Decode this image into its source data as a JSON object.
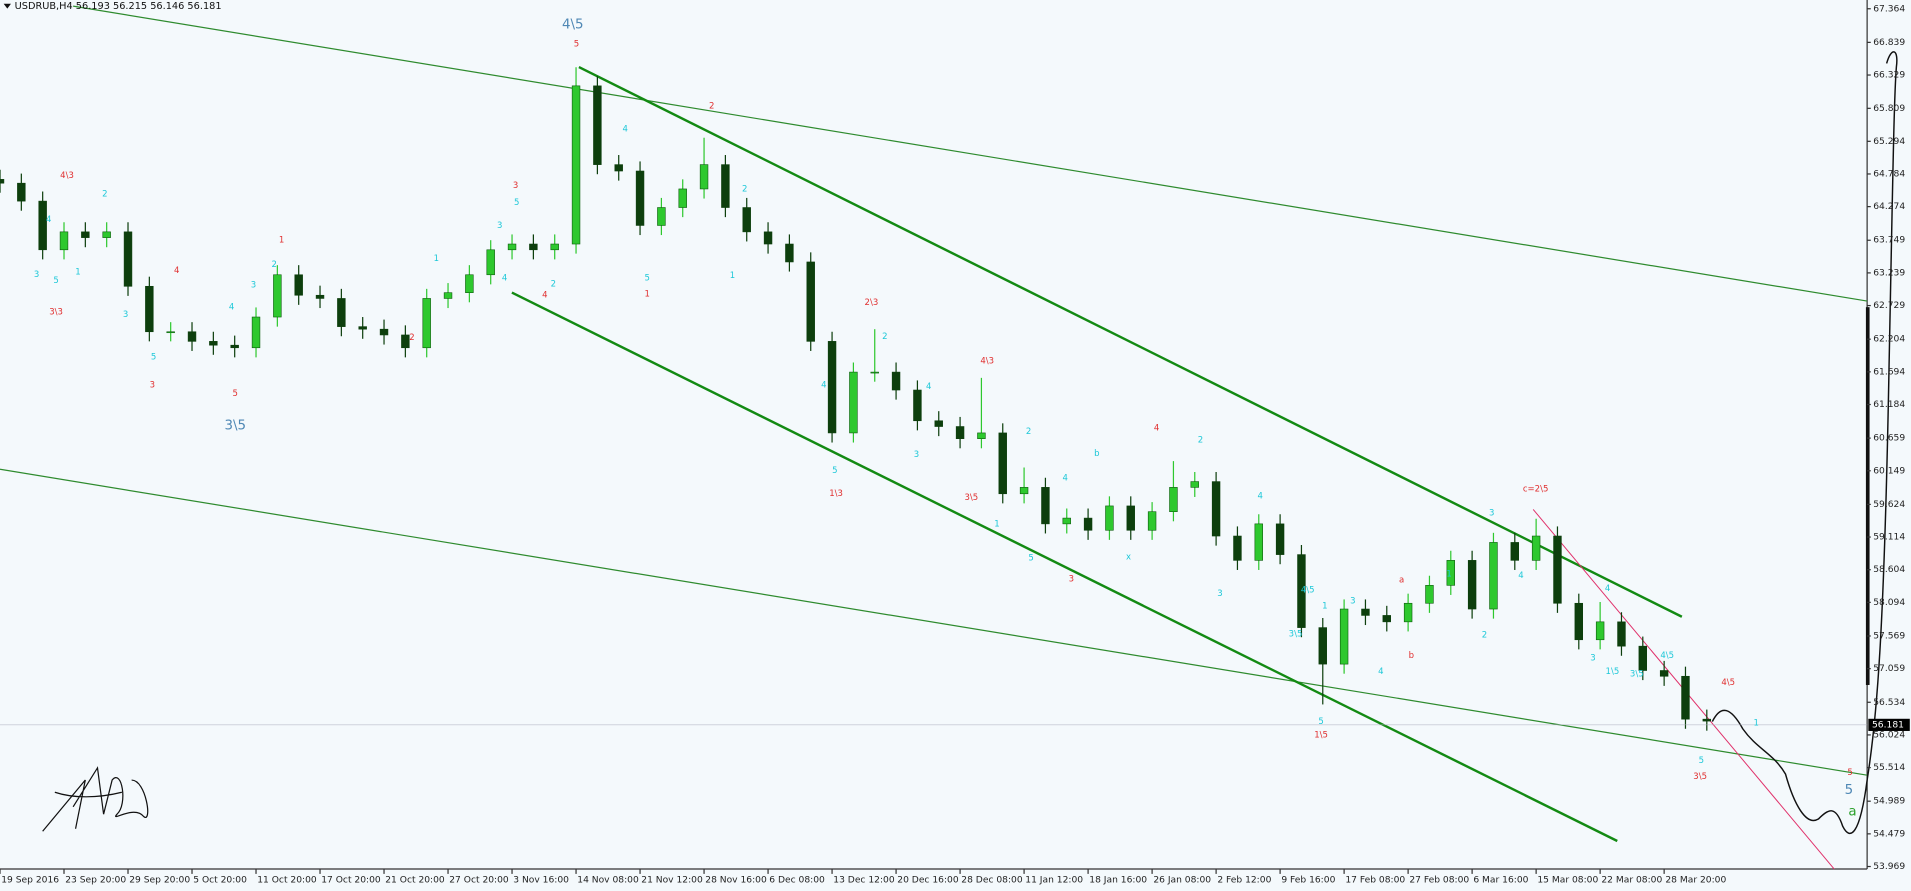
{
  "chart_data": {
    "type": "candlestick",
    "title": "USDRUB,H4  56.193 56.215 56.146 56.181",
    "x": [
      0,
      1,
      2,
      3,
      4,
      5,
      6,
      7,
      8,
      9,
      10,
      11,
      12,
      13,
      14,
      15,
      16,
      17,
      18,
      19,
      20,
      21,
      22,
      23,
      24,
      25,
      26,
      27,
      28,
      29,
      30,
      31,
      32,
      33,
      34,
      35,
      36,
      37,
      38,
      39,
      40,
      41,
      42,
      43,
      44,
      45,
      46,
      47,
      48,
      49,
      50,
      51,
      52,
      53,
      54,
      55,
      56,
      57,
      58,
      59,
      60,
      61,
      62,
      63,
      64,
      65,
      66,
      67,
      68,
      69,
      70,
      71,
      72,
      73,
      74,
      75,
      76,
      77,
      78,
      79,
      80
    ],
    "open": [
      64.7,
      64.64,
      64.36,
      63.6,
      63.88,
      63.79,
      63.88,
      63.03,
      62.32,
      62.32,
      62.17,
      62.11,
      62.07,
      62.55,
      63.21,
      62.89,
      62.84,
      62.4,
      62.36,
      62.27,
      62.07,
      62.84,
      62.93,
      63.21,
      63.6,
      63.69,
      63.6,
      63.69,
      66.16,
      64.93,
      64.83,
      63.98,
      64.26,
      64.55,
      64.93,
      64.26,
      63.88,
      63.69,
      63.41,
      62.17,
      60.74,
      61.69,
      61.69,
      61.41,
      60.93,
      60.84,
      60.65,
      60.74,
      59.79,
      59.89,
      59.32,
      59.41,
      59.22,
      59.6,
      59.22,
      59.51,
      59.89,
      59.98,
      59.13,
      58.75,
      59.32,
      58.84,
      57.7,
      57.13,
      57.99,
      57.89,
      57.79,
      58.08,
      58.36,
      58.75,
      57.99,
      59.03,
      58.75,
      59.13,
      58.08,
      57.51,
      57.79,
      57.41,
      57.03,
      56.94,
      56.27
    ],
    "high": [
      64.85,
      64.79,
      64.51,
      64.03,
      64.03,
      64.03,
      64.03,
      63.18,
      62.47,
      62.47,
      62.32,
      62.26,
      62.7,
      63.36,
      63.36,
      63.04,
      62.99,
      62.55,
      62.51,
      62.42,
      62.99,
      63.08,
      63.36,
      63.75,
      63.84,
      63.84,
      63.84,
      66.45,
      66.31,
      65.08,
      64.98,
      64.41,
      64.7,
      65.35,
      65.08,
      64.41,
      64.03,
      63.84,
      63.56,
      62.32,
      61.84,
      62.36,
      61.84,
      61.56,
      61.08,
      60.99,
      61.6,
      60.89,
      60.2,
      60.04,
      59.56,
      59.56,
      59.75,
      59.75,
      59.66,
      60.3,
      60.13,
      60.13,
      59.28,
      59.47,
      59.47,
      58.99,
      57.85,
      58.14,
      58.14,
      58.04,
      58.23,
      58.51,
      58.9,
      58.9,
      59.18,
      59.18,
      59.4,
      59.28,
      58.23,
      58.1,
      57.94,
      57.56,
      57.18,
      57.09,
      56.42
    ],
    "low": [
      64.49,
      64.21,
      63.45,
      63.45,
      63.64,
      63.64,
      62.88,
      62.17,
      62.17,
      62.02,
      61.96,
      61.92,
      61.92,
      62.4,
      62.74,
      62.69,
      62.25,
      62.21,
      62.12,
      61.92,
      61.92,
      62.69,
      62.78,
      63.06,
      63.45,
      63.45,
      63.45,
      63.54,
      64.78,
      64.68,
      63.83,
      63.83,
      64.11,
      64.4,
      64.11,
      63.73,
      63.54,
      63.26,
      62.02,
      60.59,
      60.59,
      61.54,
      61.26,
      60.78,
      60.69,
      60.5,
      60.5,
      59.64,
      59.64,
      59.17,
      59.17,
      59.07,
      59.07,
      59.07,
      59.07,
      59.36,
      59.74,
      58.98,
      58.6,
      58.6,
      58.69,
      57.55,
      56.5,
      56.98,
      57.74,
      57.64,
      57.64,
      57.93,
      58.21,
      57.84,
      57.84,
      58.6,
      58.6,
      57.93,
      57.36,
      57.36,
      57.26,
      56.88,
      56.79,
      56.12,
      56.09
    ],
    "close": [
      64.64,
      64.36,
      63.6,
      63.88,
      63.79,
      63.88,
      63.03,
      62.32,
      62.32,
      62.17,
      62.11,
      62.07,
      62.55,
      63.21,
      62.89,
      62.84,
      62.4,
      62.36,
      62.27,
      62.07,
      62.84,
      62.93,
      63.21,
      63.6,
      63.69,
      63.6,
      63.69,
      66.16,
      64.93,
      64.83,
      63.98,
      64.26,
      64.55,
      64.93,
      64.26,
      63.88,
      63.69,
      63.41,
      62.17,
      60.74,
      61.69,
      61.69,
      61.41,
      60.93,
      60.84,
      60.65,
      60.74,
      59.79,
      59.89,
      59.32,
      59.41,
      59.22,
      59.6,
      59.22,
      59.51,
      59.89,
      59.98,
      59.13,
      58.75,
      59.32,
      58.84,
      57.7,
      57.13,
      57.99,
      57.89,
      57.79,
      58.08,
      58.36,
      58.75,
      57.99,
      59.03,
      58.75,
      59.13,
      58.08,
      57.51,
      57.79,
      57.41,
      57.03,
      56.94,
      56.27,
      56.24
    ],
    "up_color": "#2ec82e",
    "down_color": "#0d3f0d",
    "xlim": [
      0,
      87.4
    ],
    "ylim": [
      53.93,
      67.5
    ],
    "xticks": [
      {
        "value": 0,
        "label": "19 Sep 2016"
      },
      {
        "value": 3,
        "label": "23 Sep 20:00"
      },
      {
        "value": 6,
        "label": "29 Sep 20:00"
      },
      {
        "value": 9,
        "label": "5 Oct 20:00"
      },
      {
        "value": 12,
        "label": "11 Oct 20:00"
      },
      {
        "value": 15,
        "label": "17 Oct 20:00"
      },
      {
        "value": 18,
        "label": "21 Oct 20:00"
      },
      {
        "value": 21,
        "label": "27 Oct 20:00"
      },
      {
        "value": 24,
        "label": "3 Nov 16:00"
      },
      {
        "value": 27,
        "label": "14 Nov 08:00"
      },
      {
        "value": 30,
        "label": "21 Nov 12:00"
      },
      {
        "value": 33,
        "label": "28 Nov 16:00"
      },
      {
        "value": 36,
        "label": "6 Dec 08:00"
      },
      {
        "value": 39,
        "label": "13 Dec 12:00"
      },
      {
        "value": 42,
        "label": "20 Dec 16:00"
      },
      {
        "value": 45,
        "label": "28 Dec 08:00"
      },
      {
        "value": 48,
        "label": "11 Jan 12:00"
      },
      {
        "value": 51,
        "label": "18 Jan 16:00"
      },
      {
        "value": 54,
        "label": "26 Jan 08:00"
      },
      {
        "value": 57,
        "label": "2 Feb 12:00"
      },
      {
        "value": 60,
        "label": "9 Feb 16:00"
      },
      {
        "value": 63,
        "label": "17 Feb 08:00"
      },
      {
        "value": 66,
        "label": "27 Feb 08:00"
      },
      {
        "value": 69,
        "label": "6 Mar 16:00"
      },
      {
        "value": 72,
        "label": "15 Mar 08:00"
      },
      {
        "value": 75,
        "label": "22 Mar 08:00"
      },
      {
        "value": 78,
        "label": "28 Mar 20:00"
      }
    ],
    "yticks": [
      67.364,
      66.839,
      66.329,
      65.809,
      65.294,
      64.784,
      64.274,
      63.749,
      63.239,
      62.729,
      62.204,
      61.694,
      61.184,
      60.659,
      60.149,
      59.624,
      59.114,
      58.604,
      58.094,
      57.569,
      57.059,
      56.534,
      56.024,
      55.514,
      54.989,
      54.479,
      53.969
    ],
    "grid": false,
    "last_price": 56.181,
    "annotations": [
      {
        "text": "4\\5",
        "color": "#4f88b5"
      },
      {
        "text": "5",
        "color": "#e03030"
      },
      {
        "text": "3\\5",
        "color": "#4f88b5"
      },
      {
        "text": "5",
        "color": "#e03030"
      },
      {
        "text": "3",
        "color": "#e03030"
      },
      {
        "text": "4\\3",
        "color": "#e03030"
      },
      {
        "text": "3\\3",
        "color": "#e03030"
      },
      {
        "text": "4",
        "color": "#e03030"
      },
      {
        "text": "1",
        "color": "#e03030"
      },
      {
        "text": "2",
        "color": "#e03030"
      },
      {
        "text": "3",
        "color": "#e03030"
      },
      {
        "text": "4",
        "color": "#e03030"
      },
      {
        "text": "2",
        "color": "#e03030"
      },
      {
        "text": "1",
        "color": "#e03030"
      },
      {
        "text": "2\\3",
        "color": "#e03030"
      },
      {
        "text": "1\\3",
        "color": "#e03030"
      },
      {
        "text": "4\\3",
        "color": "#e03030"
      },
      {
        "text": "3\\5",
        "color": "#e03030"
      },
      {
        "text": "3",
        "color": "#e03030"
      },
      {
        "text": "4",
        "color": "#e03030"
      },
      {
        "text": "a",
        "color": "#e03030"
      },
      {
        "text": "b",
        "color": "#e03030"
      },
      {
        "text": "c=2\\5",
        "color": "#e03030"
      },
      {
        "text": "1\\5",
        "color": "#e03030"
      },
      {
        "text": "3\\5",
        "color": "#e03030"
      },
      {
        "text": "4\\5",
        "color": "#e03030"
      },
      {
        "text": "5",
        "color": "#e03030"
      },
      {
        "text": "5",
        "color": "#4f88b5"
      },
      {
        "text": "a",
        "color": "#2aa02a"
      },
      {
        "text": "2",
        "color": "#1ec8d8"
      },
      {
        "text": "4",
        "color": "#1ec8d8"
      },
      {
        "text": "3",
        "color": "#1ec8d8"
      },
      {
        "text": "5",
        "color": "#1ec8d8"
      },
      {
        "text": "1",
        "color": "#1ec8d8"
      },
      {
        "text": "3",
        "color": "#1ec8d8"
      },
      {
        "text": "5",
        "color": "#1ec8d8"
      },
      {
        "text": "4",
        "color": "#1ec8d8"
      },
      {
        "text": "3",
        "color": "#1ec8d8"
      },
      {
        "text": "2",
        "color": "#1ec8d8"
      },
      {
        "text": "1",
        "color": "#1ec8d8"
      },
      {
        "text": "5",
        "color": "#1ec8d8"
      },
      {
        "text": "3",
        "color": "#1ec8d8"
      },
      {
        "text": "4",
        "color": "#1ec8d8"
      },
      {
        "text": "2",
        "color": "#1ec8d8"
      },
      {
        "text": "4",
        "color": "#1ec8d8"
      },
      {
        "text": "5",
        "color": "#1ec8d8"
      },
      {
        "text": "2",
        "color": "#1ec8d8"
      },
      {
        "text": "1",
        "color": "#1ec8d8"
      },
      {
        "text": "4",
        "color": "#1ec8d8"
      },
      {
        "text": "5",
        "color": "#1ec8d8"
      },
      {
        "text": "2",
        "color": "#1ec8d8"
      },
      {
        "text": "4",
        "color": "#1ec8d8"
      },
      {
        "text": "3",
        "color": "#1ec8d8"
      },
      {
        "text": "2",
        "color": "#1ec8d8"
      },
      {
        "text": "1",
        "color": "#1ec8d8"
      },
      {
        "text": "4",
        "color": "#1ec8d8"
      },
      {
        "text": "5",
        "color": "#1ec8d8"
      },
      {
        "text": "b",
        "color": "#1ec8d8"
      },
      {
        "text": "x",
        "color": "#1ec8d8"
      },
      {
        "text": "2",
        "color": "#1ec8d8"
      },
      {
        "text": "4",
        "color": "#1ec8d8"
      },
      {
        "text": "3",
        "color": "#1ec8d8"
      },
      {
        "text": "3",
        "color": "#1ec8d8"
      },
      {
        "text": "1",
        "color": "#1ec8d8"
      },
      {
        "text": "4\\5",
        "color": "#1ec8d8"
      },
      {
        "text": "5",
        "color": "#1ec8d8"
      },
      {
        "text": "3\\5",
        "color": "#1ec8d8"
      },
      {
        "text": "4",
        "color": "#1ec8d8"
      },
      {
        "text": "1",
        "color": "#1ec8d8"
      },
      {
        "text": "3",
        "color": "#1ec8d8"
      },
      {
        "text": "2",
        "color": "#1ec8d8"
      },
      {
        "text": "4",
        "color": "#1ec8d8"
      },
      {
        "text": "4",
        "color": "#1ec8d8"
      },
      {
        "text": "3",
        "color": "#1ec8d8"
      },
      {
        "text": "1\\5",
        "color": "#1ec8d8"
      },
      {
        "text": "4\\5",
        "color": "#1ec8d8"
      },
      {
        "text": "3\\5",
        "color": "#1ec8d8"
      },
      {
        "text": "5",
        "color": "#1ec8d8"
      },
      {
        "text": "1",
        "color": "#1ec8d8"
      }
    ]
  }
}
